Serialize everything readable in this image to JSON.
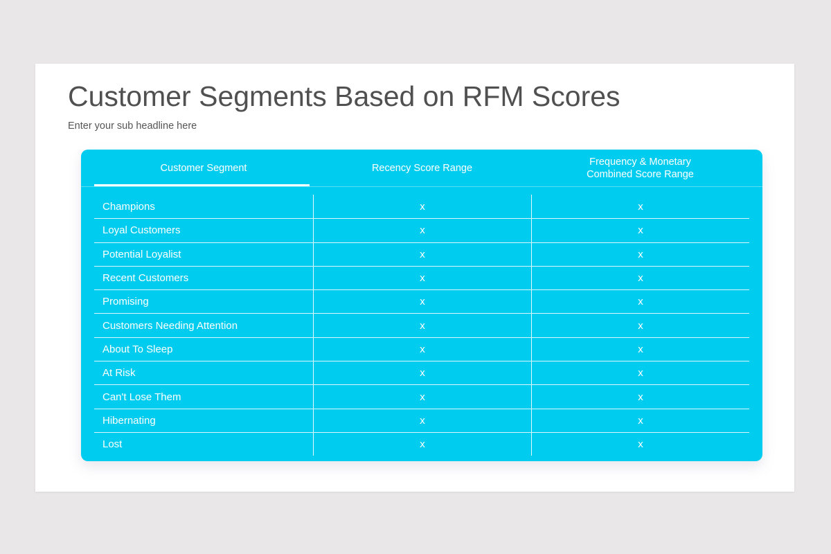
{
  "slide": {
    "title": "Customer Segments Based on RFM Scores",
    "subtitle": "Enter your sub headline here"
  },
  "table": {
    "accent_color": "#00ccf0",
    "headers": [
      "Customer Segment",
      "Recency Score Range",
      "Frequency & Monetary\nCombined Score Range"
    ],
    "active_header": 0,
    "rows": [
      {
        "segment": "Champions",
        "recency": "x",
        "fm": "x"
      },
      {
        "segment": "Loyal Customers",
        "recency": "x",
        "fm": "x"
      },
      {
        "segment": "Potential Loyalist",
        "recency": "x",
        "fm": "x"
      },
      {
        "segment": "Recent Customers",
        "recency": "x",
        "fm": "x"
      },
      {
        "segment": "Promising",
        "recency": "x",
        "fm": "x"
      },
      {
        "segment": "Customers Needing Attention",
        "recency": "x",
        "fm": "x"
      },
      {
        "segment": "About To Sleep",
        "recency": "x",
        "fm": "x"
      },
      {
        "segment": "At Risk",
        "recency": "x",
        "fm": "x"
      },
      {
        "segment": "Can't Lose Them",
        "recency": "x",
        "fm": "x"
      },
      {
        "segment": "Hibernating",
        "recency": "x",
        "fm": "x"
      },
      {
        "segment": "Lost",
        "recency": "x",
        "fm": "x"
      }
    ]
  }
}
